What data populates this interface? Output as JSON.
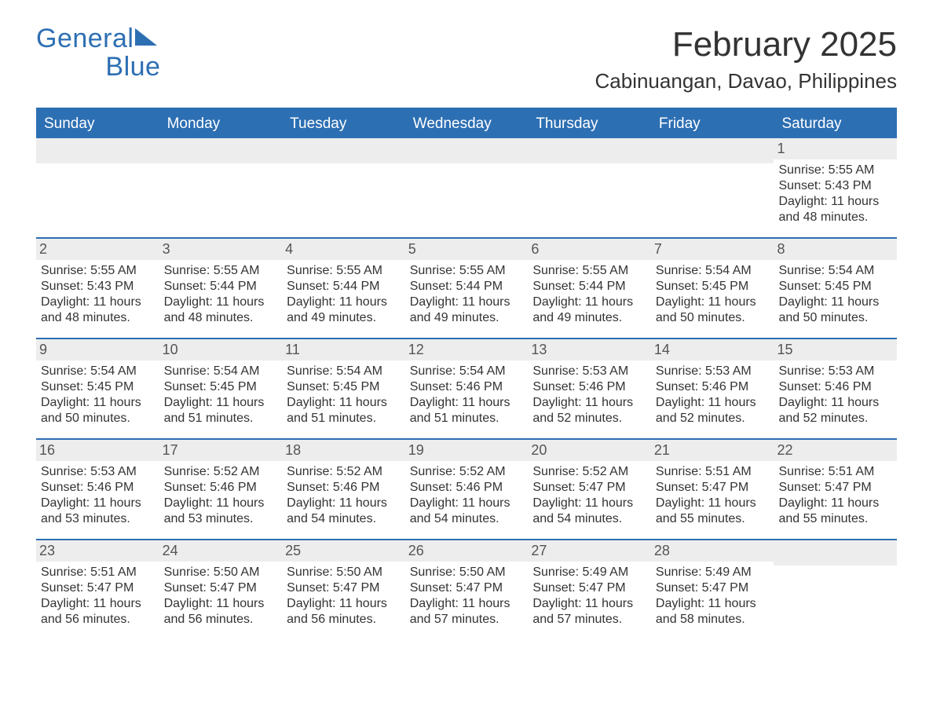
{
  "brand": {
    "word1": "General",
    "word2": "Blue",
    "color": "#2d6fb3"
  },
  "title": {
    "month": "February 2025",
    "location": "Cabinuangan, Davao, Philippines"
  },
  "colors": {
    "header_bg": "#2d6fb3",
    "header_text": "#ffffff",
    "daynum_bg": "#ededed",
    "daynum_text": "#555555",
    "body_text": "#333333",
    "rule": "#2d6fb3",
    "page_bg": "#ffffff"
  },
  "typography": {
    "title_fontsize": 44,
    "location_fontsize": 26,
    "weekday_fontsize": 19,
    "daynum_fontsize": 18,
    "detail_fontsize": 16
  },
  "weekdays": [
    "Sunday",
    "Monday",
    "Tuesday",
    "Wednesday",
    "Thursday",
    "Friday",
    "Saturday"
  ],
  "weeks": [
    [
      null,
      null,
      null,
      null,
      null,
      null,
      {
        "num": "1",
        "sunrise": "5:55 AM",
        "sunset": "5:43 PM",
        "daylight": "11 hours and 48 minutes."
      }
    ],
    [
      {
        "num": "2",
        "sunrise": "5:55 AM",
        "sunset": "5:43 PM",
        "daylight": "11 hours and 48 minutes."
      },
      {
        "num": "3",
        "sunrise": "5:55 AM",
        "sunset": "5:44 PM",
        "daylight": "11 hours and 48 minutes."
      },
      {
        "num": "4",
        "sunrise": "5:55 AM",
        "sunset": "5:44 PM",
        "daylight": "11 hours and 49 minutes."
      },
      {
        "num": "5",
        "sunrise": "5:55 AM",
        "sunset": "5:44 PM",
        "daylight": "11 hours and 49 minutes."
      },
      {
        "num": "6",
        "sunrise": "5:55 AM",
        "sunset": "5:44 PM",
        "daylight": "11 hours and 49 minutes."
      },
      {
        "num": "7",
        "sunrise": "5:54 AM",
        "sunset": "5:45 PM",
        "daylight": "11 hours and 50 minutes."
      },
      {
        "num": "8",
        "sunrise": "5:54 AM",
        "sunset": "5:45 PM",
        "daylight": "11 hours and 50 minutes."
      }
    ],
    [
      {
        "num": "9",
        "sunrise": "5:54 AM",
        "sunset": "5:45 PM",
        "daylight": "11 hours and 50 minutes."
      },
      {
        "num": "10",
        "sunrise": "5:54 AM",
        "sunset": "5:45 PM",
        "daylight": "11 hours and 51 minutes."
      },
      {
        "num": "11",
        "sunrise": "5:54 AM",
        "sunset": "5:45 PM",
        "daylight": "11 hours and 51 minutes."
      },
      {
        "num": "12",
        "sunrise": "5:54 AM",
        "sunset": "5:46 PM",
        "daylight": "11 hours and 51 minutes."
      },
      {
        "num": "13",
        "sunrise": "5:53 AM",
        "sunset": "5:46 PM",
        "daylight": "11 hours and 52 minutes."
      },
      {
        "num": "14",
        "sunrise": "5:53 AM",
        "sunset": "5:46 PM",
        "daylight": "11 hours and 52 minutes."
      },
      {
        "num": "15",
        "sunrise": "5:53 AM",
        "sunset": "5:46 PM",
        "daylight": "11 hours and 52 minutes."
      }
    ],
    [
      {
        "num": "16",
        "sunrise": "5:53 AM",
        "sunset": "5:46 PM",
        "daylight": "11 hours and 53 minutes."
      },
      {
        "num": "17",
        "sunrise": "5:52 AM",
        "sunset": "5:46 PM",
        "daylight": "11 hours and 53 minutes."
      },
      {
        "num": "18",
        "sunrise": "5:52 AM",
        "sunset": "5:46 PM",
        "daylight": "11 hours and 54 minutes."
      },
      {
        "num": "19",
        "sunrise": "5:52 AM",
        "sunset": "5:46 PM",
        "daylight": "11 hours and 54 minutes."
      },
      {
        "num": "20",
        "sunrise": "5:52 AM",
        "sunset": "5:47 PM",
        "daylight": "11 hours and 54 minutes."
      },
      {
        "num": "21",
        "sunrise": "5:51 AM",
        "sunset": "5:47 PM",
        "daylight": "11 hours and 55 minutes."
      },
      {
        "num": "22",
        "sunrise": "5:51 AM",
        "sunset": "5:47 PM",
        "daylight": "11 hours and 55 minutes."
      }
    ],
    [
      {
        "num": "23",
        "sunrise": "5:51 AM",
        "sunset": "5:47 PM",
        "daylight": "11 hours and 56 minutes."
      },
      {
        "num": "24",
        "sunrise": "5:50 AM",
        "sunset": "5:47 PM",
        "daylight": "11 hours and 56 minutes."
      },
      {
        "num": "25",
        "sunrise": "5:50 AM",
        "sunset": "5:47 PM",
        "daylight": "11 hours and 56 minutes."
      },
      {
        "num": "26",
        "sunrise": "5:50 AM",
        "sunset": "5:47 PM",
        "daylight": "11 hours and 57 minutes."
      },
      {
        "num": "27",
        "sunrise": "5:49 AM",
        "sunset": "5:47 PM",
        "daylight": "11 hours and 57 minutes."
      },
      {
        "num": "28",
        "sunrise": "5:49 AM",
        "sunset": "5:47 PM",
        "daylight": "11 hours and 58 minutes."
      },
      null
    ]
  ],
  "labels": {
    "sunrise": "Sunrise: ",
    "sunset": "Sunset: ",
    "daylight": "Daylight: "
  }
}
